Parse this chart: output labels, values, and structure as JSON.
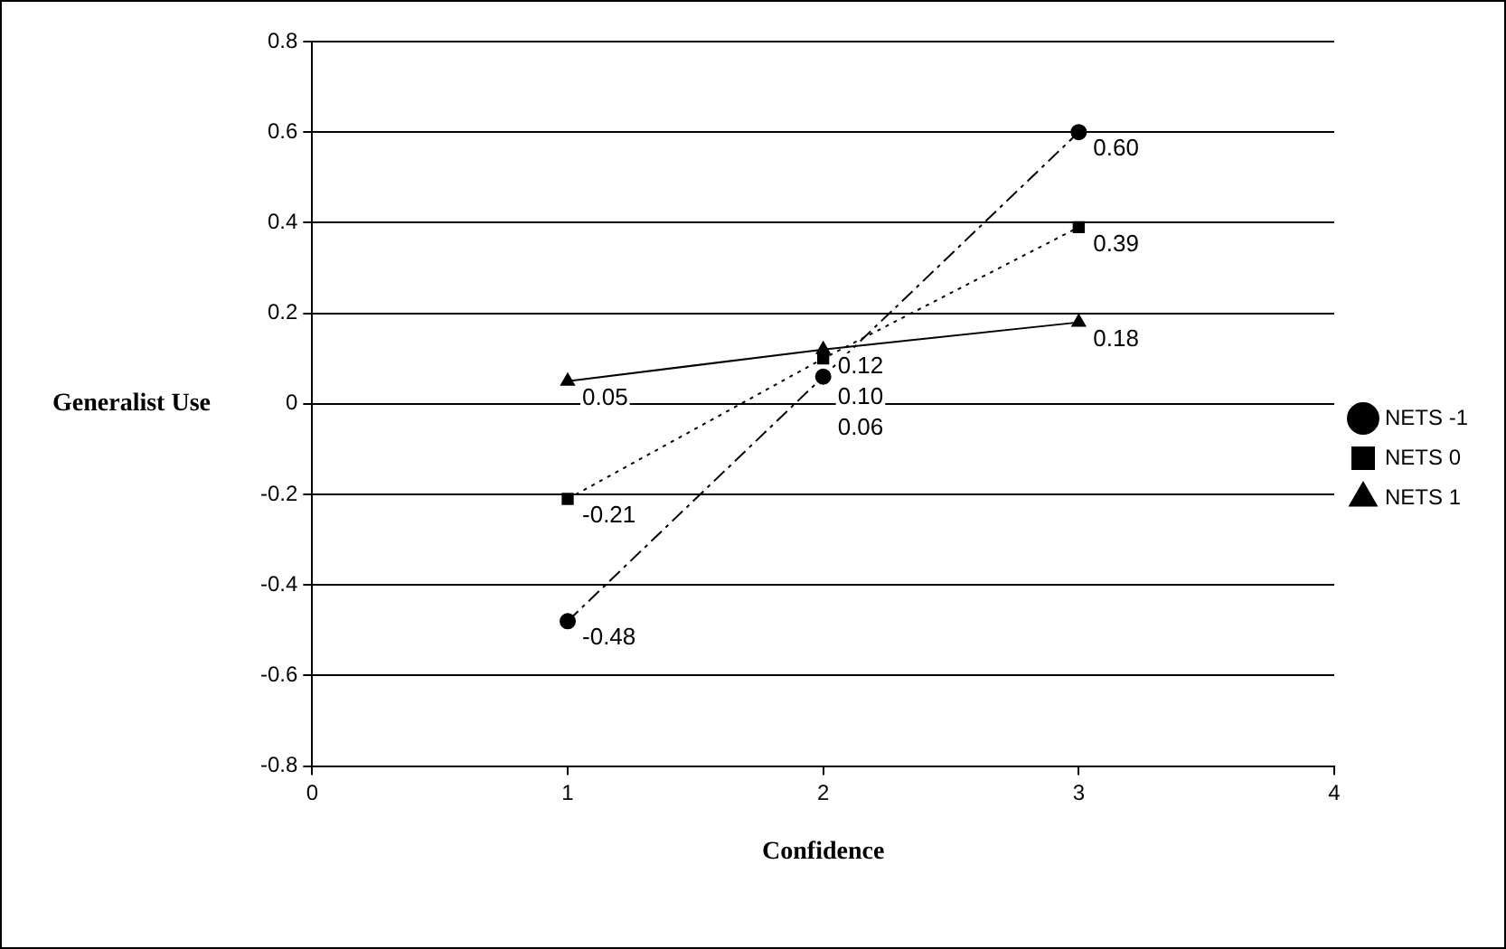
{
  "chart_data": {
    "type": "line",
    "xlabel": "Confidence",
    "ylabel": "Generalist Use",
    "x": [
      1,
      2,
      3
    ],
    "series": [
      {
        "name": "NETS -1",
        "color": "#000000",
        "values": [
          -0.48,
          0.06,
          0.6
        ],
        "value_labels": [
          "-0.48",
          "0.06",
          "0.60"
        ],
        "marker": "circle",
        "line_style": "dashed"
      },
      {
        "name": "NETS 0",
        "color": "#000000",
        "values": [
          -0.21,
          0.1,
          0.39
        ],
        "value_labels": [
          "-0.21",
          "0.10",
          "0.39"
        ],
        "marker": "square",
        "line_style": "dotted"
      },
      {
        "name": "NETS 1",
        "color": "#000000",
        "values": [
          0.05,
          0.12,
          0.18
        ],
        "value_labels": [
          "0.05",
          "0.12",
          "0.18"
        ],
        "marker": "triangle",
        "line_style": "solid"
      }
    ],
    "xlim": [
      0,
      4
    ],
    "xticks": [
      0,
      1,
      2,
      3,
      4
    ],
    "ylim": [
      -0.8,
      0.8
    ],
    "yticks": [
      -0.8,
      -0.6,
      -0.4,
      -0.2,
      0,
      0.2,
      0.4,
      0.6,
      0.8
    ],
    "grid": "y",
    "legend": "right"
  }
}
